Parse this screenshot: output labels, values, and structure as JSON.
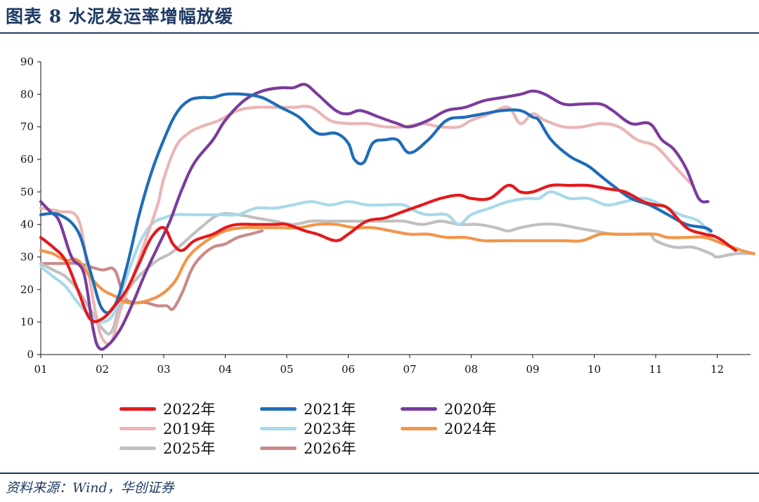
{
  "header": {
    "title": "图表 8 水泥发运率增幅放缓"
  },
  "footer": {
    "source": "资料来源：Wind，华创证券"
  },
  "chart_data": {
    "type": "line",
    "title": "",
    "xlabel": "",
    "ylabel": "",
    "xlim": [
      1,
      12.6
    ],
    "ylim": [
      0,
      90
    ],
    "y_ticks": [
      "0",
      "10",
      "20",
      "30",
      "40",
      "50",
      "60",
      "70",
      "80",
      "90"
    ],
    "x_ticks": [
      "01",
      "02",
      "03",
      "04",
      "05",
      "06",
      "07",
      "08",
      "09",
      "10",
      "11",
      "12"
    ],
    "grid": false,
    "legend_position": "bottom",
    "series": [
      {
        "name": "2022年",
        "color": "#e31a1c",
        "x": [
          1.0,
          1.2,
          1.4,
          1.6,
          1.8,
          2.0,
          2.2,
          2.4,
          2.6,
          2.8,
          3.0,
          3.15,
          3.3,
          3.5,
          3.8,
          4.0,
          4.2,
          4.5,
          4.8,
          5.0,
          5.3,
          5.5,
          5.8,
          6.0,
          6.3,
          6.6,
          6.9,
          7.2,
          7.5,
          7.8,
          8.0,
          8.3,
          8.6,
          8.8,
          9.0,
          9.3,
          9.6,
          9.9,
          10.2,
          10.5,
          10.8,
          11.0,
          11.2,
          11.5,
          11.8,
          12.0,
          12.3
        ],
        "y": [
          36,
          33,
          29,
          20,
          11,
          11,
          15,
          20,
          28,
          36,
          39,
          34,
          32,
          35,
          37,
          39,
          40,
          40,
          40,
          40,
          38,
          37,
          35,
          37,
          41,
          42,
          44,
          46,
          48,
          49,
          48,
          48,
          52,
          50,
          50,
          52,
          52,
          52,
          51,
          50,
          47,
          46,
          45,
          39,
          37,
          36,
          32
        ]
      },
      {
        "name": "2021年",
        "color": "#1f6cb8",
        "x": [
          1.0,
          1.3,
          1.6,
          1.8,
          2.0,
          2.2,
          2.4,
          2.6,
          2.8,
          3.0,
          3.2,
          3.4,
          3.6,
          3.8,
          4.0,
          4.3,
          4.6,
          4.9,
          5.2,
          5.5,
          5.8,
          6.0,
          6.1,
          6.25,
          6.4,
          6.6,
          6.8,
          7.0,
          7.3,
          7.6,
          7.9,
          8.2,
          8.5,
          8.8,
          9.0,
          9.1,
          9.3,
          9.6,
          9.9,
          10.1,
          10.3,
          10.6,
          10.9,
          11.2,
          11.5,
          11.8,
          11.9
        ],
        "y": [
          43,
          43,
          38,
          26,
          14,
          15,
          27,
          43,
          56,
          66,
          74,
          78,
          79,
          79,
          80,
          80,
          79,
          76,
          73,
          68,
          68,
          65,
          60,
          59,
          65,
          66,
          66,
          62,
          66,
          72,
          73,
          74,
          75,
          75,
          73,
          72,
          66,
          61,
          58,
          55,
          52,
          48,
          46,
          43,
          40,
          39,
          38
        ]
      },
      {
        "name": "2020年",
        "color": "#7a3c9c",
        "x": [
          1.0,
          1.15,
          1.3,
          1.5,
          1.7,
          1.85,
          1.95,
          2.1,
          2.3,
          2.5,
          2.7,
          2.9,
          3.1,
          3.3,
          3.5,
          3.8,
          4.0,
          4.3,
          4.6,
          4.9,
          5.1,
          5.3,
          5.5,
          5.8,
          6.0,
          6.2,
          6.5,
          6.8,
          7.0,
          7.3,
          7.6,
          7.9,
          8.2,
          8.5,
          8.8,
          9.0,
          9.2,
          9.5,
          9.8,
          10.1,
          10.3,
          10.6,
          10.9,
          11.1,
          11.3,
          11.5,
          11.7,
          11.85
        ],
        "y": [
          47,
          44,
          41,
          30,
          25,
          8,
          2,
          3,
          8,
          16,
          25,
          33,
          41,
          51,
          59,
          66,
          72,
          78,
          81,
          82,
          82,
          83,
          80,
          75,
          74,
          75,
          73,
          71,
          70,
          72,
          75,
          76,
          78,
          79,
          80,
          81,
          80,
          77,
          77,
          77,
          75,
          71,
          71,
          66,
          63,
          57,
          48,
          47
        ]
      },
      {
        "name": "2019年",
        "color": "#eab5b5",
        "x": [
          1.0,
          1.3,
          1.6,
          1.75,
          1.9,
          2.0,
          2.15,
          2.3,
          2.5,
          2.7,
          2.9,
          3.0,
          3.2,
          3.4,
          3.6,
          3.9,
          4.2,
          4.5,
          4.8,
          5.1,
          5.4,
          5.7,
          6.0,
          6.3,
          6.6,
          6.9,
          7.2,
          7.5,
          7.8,
          8.0,
          8.3,
          8.6,
          8.8,
          9.0,
          9.2,
          9.5,
          9.8,
          10.1,
          10.4,
          10.7,
          11.0,
          11.3,
          11.6
        ],
        "y": [
          45,
          44,
          42,
          28,
          12,
          5,
          4,
          14,
          24,
          35,
          46,
          54,
          64,
          68,
          70,
          72,
          75,
          76,
          76,
          76,
          76,
          72,
          71,
          71,
          70,
          70,
          71,
          70,
          70,
          72,
          74,
          76,
          71,
          74,
          72,
          70,
          70,
          71,
          70,
          66,
          64,
          58,
          52
        ]
      },
      {
        "name": "2023年",
        "color": "#a8d9ea",
        "x": [
          1.0,
          1.2,
          1.4,
          1.6,
          1.8,
          2.0,
          2.2,
          2.4,
          2.6,
          2.8,
          3.0,
          3.2,
          3.4,
          3.6,
          3.9,
          4.2,
          4.5,
          4.8,
          5.1,
          5.4,
          5.7,
          6.0,
          6.3,
          6.6,
          6.9,
          7.1,
          7.3,
          7.6,
          7.8,
          8.0,
          8.3,
          8.6,
          8.9,
          9.1,
          9.3,
          9.6,
          9.9,
          10.2,
          10.5,
          10.8,
          11.1,
          11.4,
          11.7,
          11.9,
          12.1
        ],
        "y": [
          27,
          24,
          21,
          16,
          12,
          10,
          13,
          24,
          34,
          40,
          42,
          43,
          43,
          43,
          43,
          43,
          45,
          45,
          46,
          47,
          46,
          47,
          46,
          46,
          46,
          44,
          43,
          43,
          40,
          43,
          45,
          47,
          48,
          48,
          50,
          48,
          48,
          46,
          47,
          48,
          46,
          43,
          41,
          37,
          35
        ]
      },
      {
        "name": "2024年",
        "color": "#f2954a",
        "x": [
          1.0,
          1.2,
          1.4,
          1.6,
          1.8,
          2.0,
          2.2,
          2.4,
          2.6,
          2.8,
          3.0,
          3.2,
          3.4,
          3.7,
          4.0,
          4.3,
          4.6,
          4.9,
          5.2,
          5.5,
          5.8,
          6.1,
          6.4,
          6.7,
          7.0,
          7.3,
          7.6,
          7.9,
          8.2,
          8.5,
          8.8,
          9.0,
          9.2,
          9.5,
          9.8,
          10.1,
          10.4,
          10.7,
          11.0,
          11.2,
          11.5,
          11.8,
          12.1,
          12.4,
          12.6
        ],
        "y": [
          32,
          31,
          29,
          29,
          24,
          20,
          18,
          16,
          16,
          17,
          19,
          23,
          30,
          35,
          38,
          39,
          39,
          39,
          39,
          40,
          40,
          39,
          39,
          38,
          37,
          37,
          36,
          36,
          35,
          35,
          35,
          35,
          35,
          35,
          35,
          37,
          37,
          37,
          37,
          36,
          36,
          36,
          34,
          32,
          31
        ]
      },
      {
        "name": "2025年",
        "color": "#c0c0c0",
        "x": [
          1.0,
          1.2,
          1.4,
          1.6,
          1.8,
          2.0,
          2.15,
          2.3,
          2.5,
          2.7,
          2.9,
          3.1,
          3.3,
          3.6,
          3.9,
          4.2,
          4.5,
          4.8,
          5.1,
          5.4,
          5.7,
          6.0,
          6.3,
          6.6,
          6.9,
          7.2,
          7.5,
          7.8,
          8.1,
          8.4,
          8.6,
          8.8,
          9.1,
          9.4,
          9.7,
          10.0,
          10.3,
          10.6,
          10.9,
          11.0,
          11.3,
          11.6,
          11.9,
          12.0,
          12.3,
          12.6
        ],
        "y": [
          28,
          26,
          24,
          20,
          14,
          8,
          7,
          16,
          22,
          26,
          29,
          31,
          34,
          39,
          43,
          43,
          42,
          41,
          40,
          41,
          41,
          41,
          41,
          41,
          41,
          40,
          41,
          40,
          40,
          39,
          38,
          39,
          40,
          40,
          39,
          38,
          37,
          37,
          37,
          35,
          33,
          33,
          31,
          30,
          31,
          31
        ]
      },
      {
        "name": "2026年",
        "color": "#c98a8a",
        "x": [
          1.0,
          1.3,
          1.6,
          1.8,
          2.0,
          2.2,
          2.35,
          2.5,
          2.7,
          2.9,
          3.05,
          3.15,
          3.3,
          3.45,
          3.6,
          3.8,
          4.0,
          4.2,
          4.4,
          4.6
        ],
        "y": [
          28,
          28,
          28,
          27,
          26,
          26,
          18,
          16,
          16,
          15,
          15,
          14,
          19,
          26,
          30,
          33,
          34,
          36,
          37,
          38
        ]
      }
    ]
  }
}
